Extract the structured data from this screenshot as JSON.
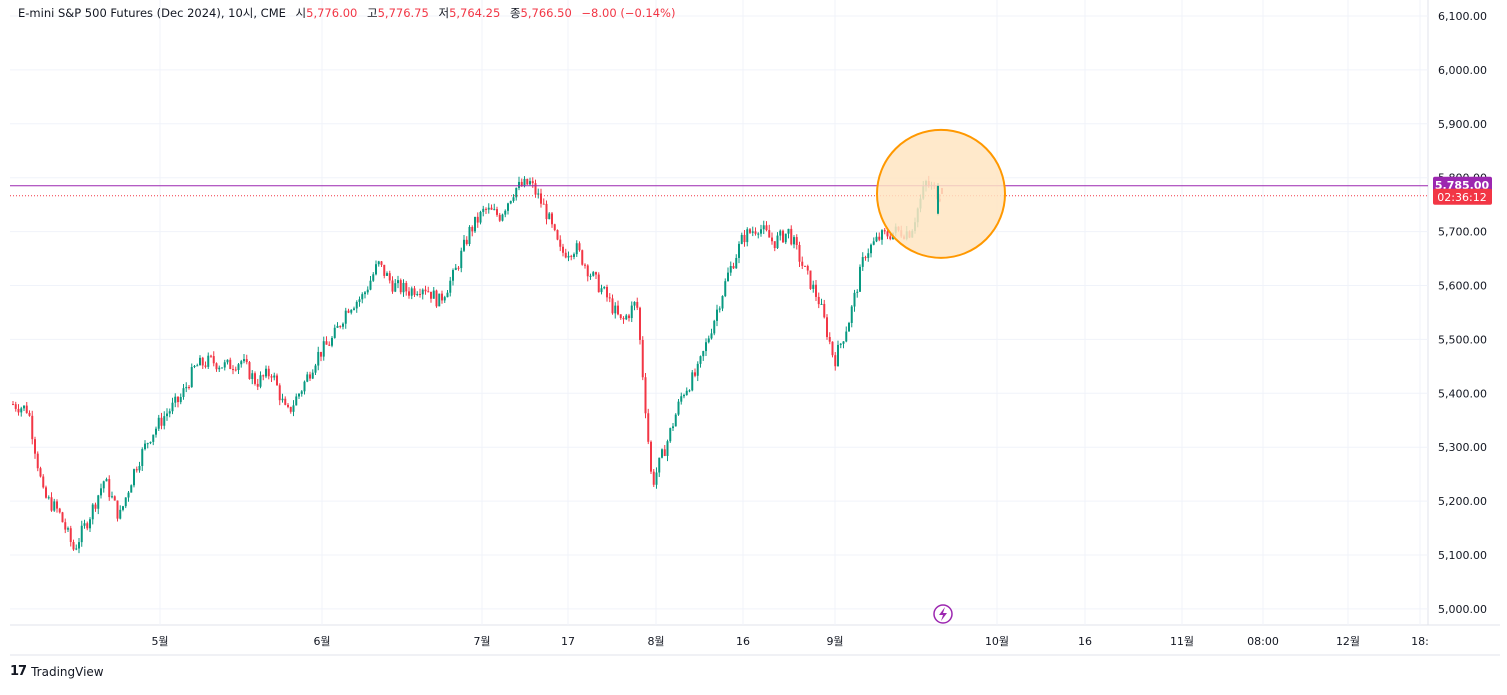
{
  "legend": {
    "symbol": "E-mini S&P 500 Futures (Dec 2024), 10시, CME",
    "open_label": "시",
    "open": "5,776.00",
    "high_label": "고",
    "high": "5,776.75",
    "low_label": "저",
    "low": "5,764.25",
    "close_label": "종",
    "close": "5,766.50",
    "change": "−8.00 (−0.14%)"
  },
  "brand": {
    "logo": "17",
    "name": "TradingView"
  },
  "price_axis": {
    "labels": [
      "6,100.00",
      "6,000.00",
      "5,900.00",
      "5,800.00",
      "5,700.00",
      "5,600.00",
      "5,500.00",
      "5,400.00",
      "5,300.00",
      "5,200.00",
      "5,100.00",
      "5,000.00"
    ],
    "values": [
      6100,
      6000,
      5900,
      5800,
      5700,
      5600,
      5500,
      5400,
      5300,
      5200,
      5100,
      5000
    ]
  },
  "time_axis": {
    "labels": [
      "5월",
      "6월",
      "7월",
      "17",
      "8월",
      "16",
      "9월",
      "10월",
      "16",
      "11월",
      "08:00",
      "12월",
      "18:"
    ]
  },
  "markers": {
    "resistance_price": 5785.0,
    "resistance_label": "5,785.00",
    "current_price": 5766.5,
    "countdown_label": "02:36:12",
    "highlight_circle_center": 5770,
    "lightning_icon": "lightning-icon"
  },
  "colors": {
    "up": "#089981",
    "down": "#f23645",
    "grid": "#f0f3fa",
    "resistance": "#9c27b0",
    "price_tag": "#f23645",
    "highlight_fill": "#ffe5c2",
    "highlight_stroke": "#ff9800"
  },
  "chart_data": {
    "type": "candlestick",
    "title": "E-mini S&P 500 Futures (Dec 2024), 10시, CME",
    "ylim": [
      5000,
      6100
    ],
    "grid": true,
    "price_path": [
      [
        "04-15",
        5380
      ],
      [
        "04-17",
        5370
      ],
      [
        "04-19",
        5210
      ],
      [
        "04-22",
        5180
      ],
      [
        "04-24",
        5110
      ],
      [
        "04-26",
        5170
      ],
      [
        "04-29",
        5240
      ],
      [
        "05-01",
        5170
      ],
      [
        "05-03",
        5260
      ],
      [
        "05-06",
        5320
      ],
      [
        "05-08",
        5360
      ],
      [
        "05-10",
        5390
      ],
      [
        "05-13",
        5450
      ],
      [
        "05-15",
        5460
      ],
      [
        "05-17",
        5450
      ],
      [
        "05-21",
        5460
      ],
      [
        "05-23",
        5420
      ],
      [
        "05-28",
        5440
      ],
      [
        "05-30",
        5360
      ],
      [
        "06-03",
        5410
      ],
      [
        "06-05",
        5470
      ],
      [
        "06-07",
        5500
      ],
      [
        "06-10",
        5560
      ],
      [
        "06-12",
        5580
      ],
      [
        "06-14",
        5640
      ],
      [
        "06-17",
        5600
      ],
      [
        "06-20",
        5590
      ],
      [
        "06-24",
        5600
      ],
      [
        "06-26",
        5570
      ],
      [
        "06-28",
        5620
      ],
      [
        "07-02",
        5700
      ],
      [
        "07-05",
        5740
      ],
      [
        "07-08",
        5730
      ],
      [
        "07-11",
        5780
      ],
      [
        "07-15",
        5790
      ],
      [
        "07-17",
        5740
      ],
      [
        "07-19",
        5660
      ],
      [
        "07-23",
        5670
      ],
      [
        "07-25",
        5620
      ],
      [
        "07-29",
        5580
      ],
      [
        "07-31",
        5530
      ],
      [
        "08-02",
        5570
      ],
      [
        "08-05",
        5230
      ],
      [
        "08-07",
        5310
      ],
      [
        "08-09",
        5400
      ],
      [
        "08-12",
        5440
      ],
      [
        "08-14",
        5530
      ],
      [
        "08-16",
        5620
      ],
      [
        "08-20",
        5690
      ],
      [
        "08-22",
        5710
      ],
      [
        "08-26",
        5680
      ],
      [
        "08-28",
        5700
      ],
      [
        "09-03",
        5630
      ],
      [
        "09-05",
        5570
      ],
      [
        "09-09",
        5460
      ],
      [
        "09-11",
        5540
      ],
      [
        "09-13",
        5660
      ],
      [
        "09-17",
        5690
      ],
      [
        "09-19",
        5700
      ],
      [
        "09-23",
        5700
      ],
      [
        "09-25",
        5790
      ],
      [
        "09-26",
        5766.5
      ]
    ]
  }
}
